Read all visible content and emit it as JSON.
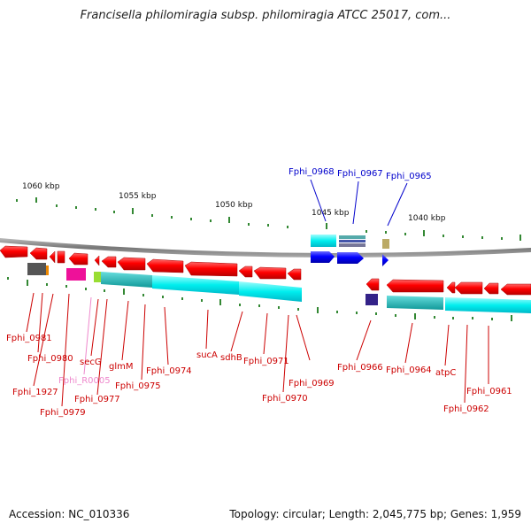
{
  "title": "Francisella philomiragia subsp. philomiragia ATCC 25017, com...",
  "footer": {
    "accession": "Accession: NC_010336",
    "summary": "Topology: circular; Length: 2,045,775 bp; Genes: 1,959"
  },
  "colors": {
    "cds": "#ee0000",
    "cds_highlight": "#0000ee",
    "label_red": "#cc0000",
    "label_blue": "#0000cc",
    "label_pink": "#ee88cc",
    "backbone": "#888888",
    "tick": "#228822",
    "domain_cyan": "#00dddd"
  },
  "scale_labels": [
    "1060 kbp",
    "1055 kbp",
    "1050 kbp",
    "1045 kbp",
    "1040 kbp"
  ],
  "genes": {
    "Fphi_0981": "Fphi_0981",
    "Fphi_0980": "Fphi_0980",
    "Fphi_1927": "Fphi_1927",
    "Fphi_0979": "Fphi_0979",
    "Fphi_R0005": "Fphi_R0005",
    "secG": "secG",
    "Fphi_0977": "Fphi_0977",
    "glmM": "glmM",
    "Fphi_0975": "Fphi_0975",
    "Fphi_0974": "Fphi_0974",
    "sucA": "sucA",
    "sdhB": "sdhB",
    "Fphi_0971": "Fphi_0971",
    "Fphi_0970": "Fphi_0970",
    "Fphi_0969": "Fphi_0969",
    "Fphi_0966": "Fphi_0966",
    "Fphi_0964": "Fphi_0964",
    "atpC": "atpC",
    "Fphi_0962": "Fphi_0962",
    "Fphi_0961": "Fphi_0961",
    "Fphi_0968": "Fphi_0968",
    "Fphi_0967": "Fphi_0967",
    "Fphi_0965": "Fphi_0965"
  }
}
